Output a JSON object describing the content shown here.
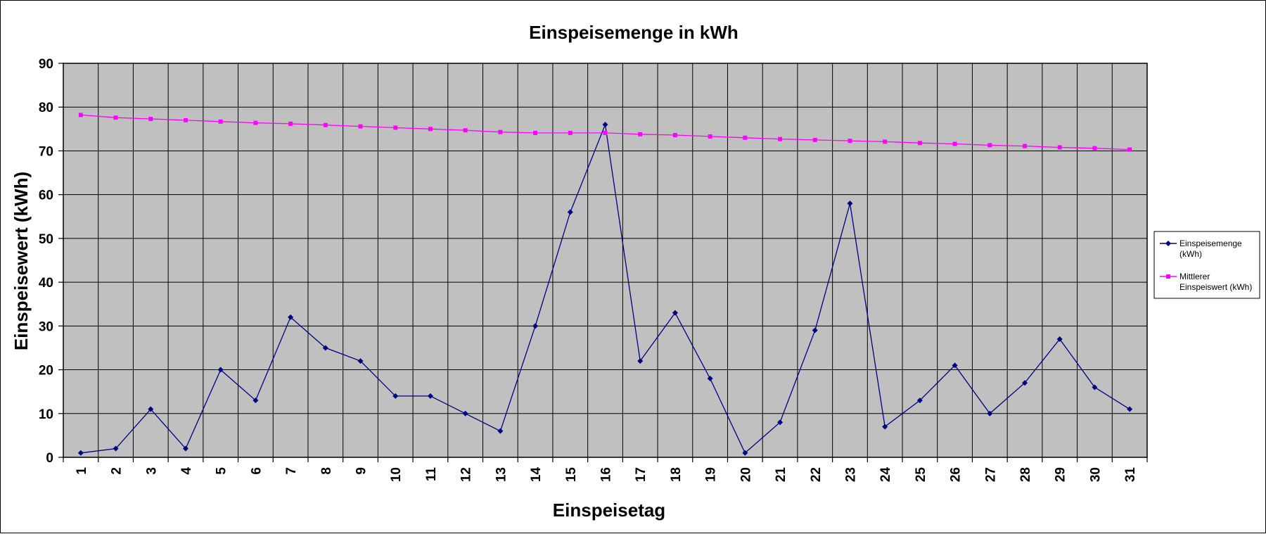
{
  "chart_data": {
    "type": "line",
    "title": "Einspeisemenge in kWh",
    "xlabel": "Einspeisetag",
    "ylabel": "Einspeisewert  (kWh)",
    "ylim": [
      0,
      90
    ],
    "yticks": [
      0,
      10,
      20,
      30,
      40,
      50,
      60,
      70,
      80,
      90
    ],
    "x": [
      1,
      2,
      3,
      4,
      5,
      6,
      7,
      8,
      9,
      10,
      11,
      12,
      13,
      14,
      15,
      16,
      17,
      18,
      19,
      20,
      21,
      22,
      23,
      24,
      25,
      26,
      27,
      28,
      29,
      30,
      31
    ],
    "grid": true,
    "plot_background": "#c0c0c0",
    "legend_position": "right",
    "series": [
      {
        "name_lines": [
          "Einspeisemenge",
          "(kWh)"
        ],
        "color": "#000080",
        "marker": "diamond",
        "values": [
          1,
          2,
          11,
          2,
          20,
          13,
          32,
          25,
          22,
          14,
          14,
          10,
          6,
          30,
          56,
          76,
          22,
          33,
          18,
          1,
          8,
          29,
          58,
          7,
          13,
          21,
          10,
          17,
          27,
          16,
          11
        ]
      },
      {
        "name_lines": [
          "Mittlerer",
          "Einspeiswert (kWh)"
        ],
        "color": "#ff00ff",
        "marker": "square",
        "values": [
          78.2,
          77.6,
          77.3,
          77.0,
          76.7,
          76.4,
          76.2,
          75.9,
          75.6,
          75.3,
          75.0,
          74.7,
          74.3,
          74.1,
          74.1,
          74.1,
          73.8,
          73.6,
          73.3,
          73.0,
          72.7,
          72.5,
          72.3,
          72.1,
          71.8,
          71.6,
          71.3,
          71.1,
          70.8,
          70.6,
          70.3
        ]
      }
    ]
  }
}
